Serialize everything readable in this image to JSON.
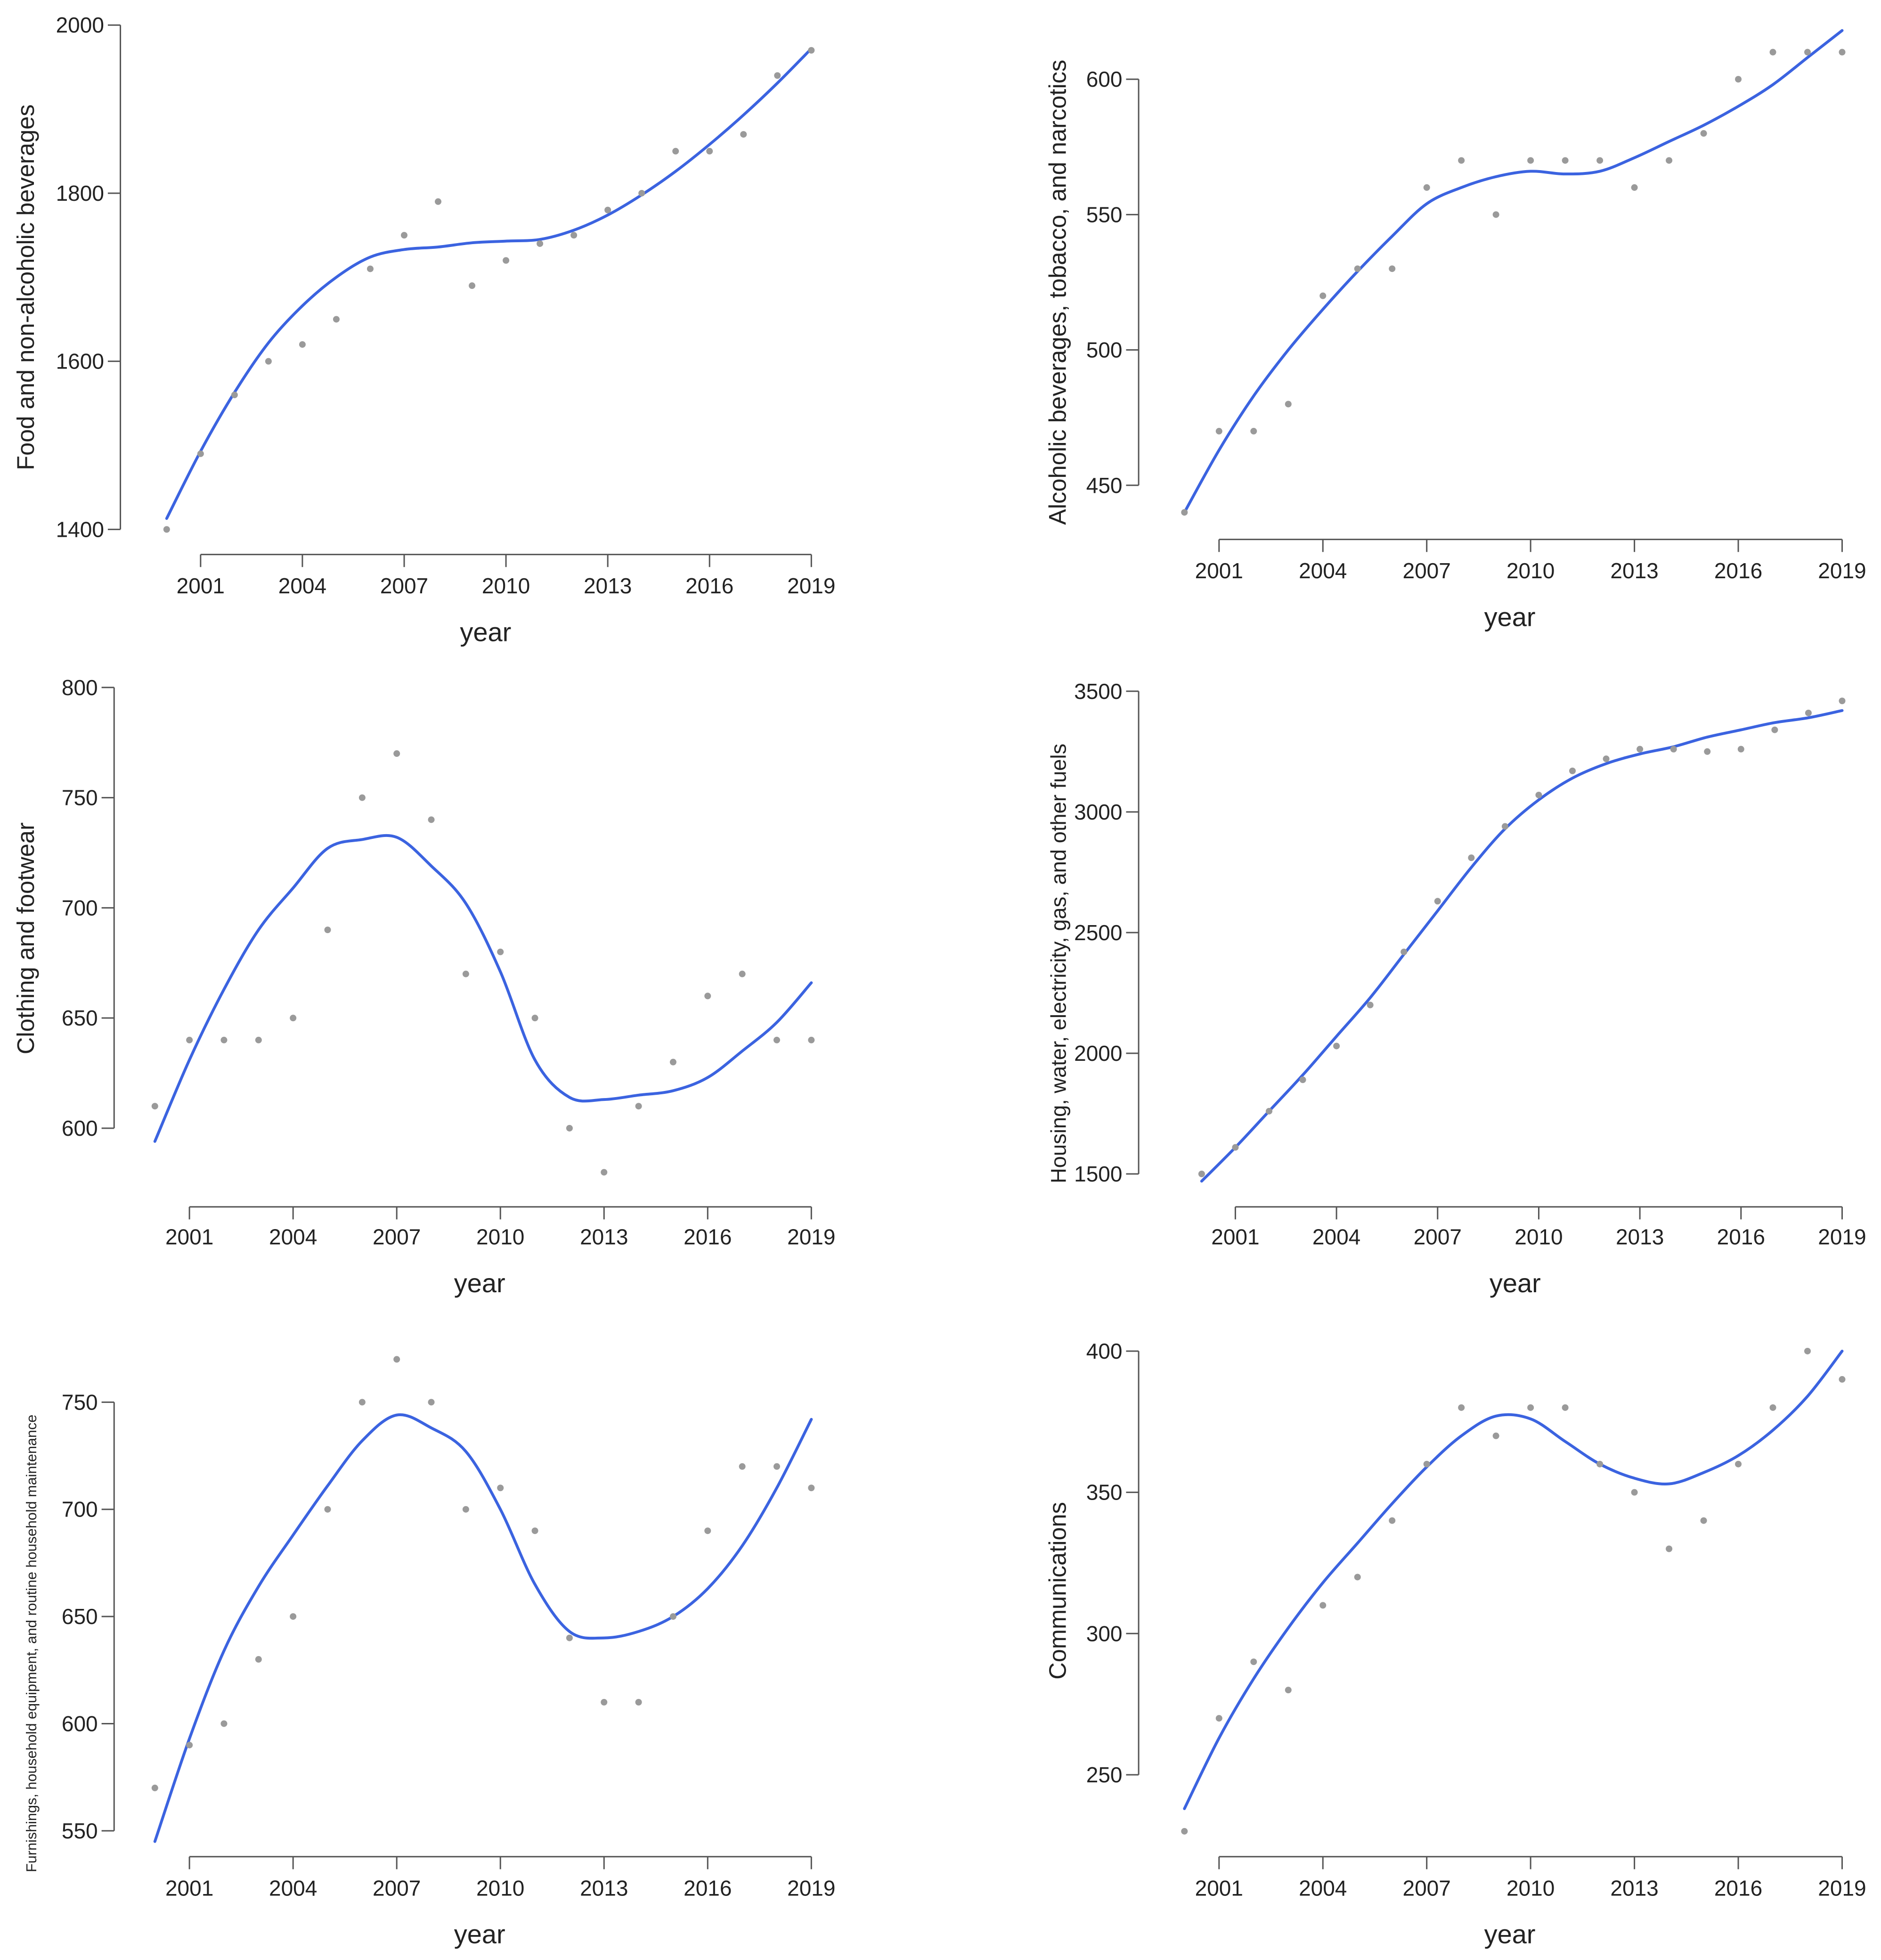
{
  "colors": {
    "smooth_line": "#3b63e0",
    "points": "#9a9a9a",
    "axis": "#555555",
    "text": "#222222"
  },
  "chart_data": [
    {
      "type": "scatter",
      "xlabel": "year",
      "ylabel": "Food and non-alcoholic beverages",
      "xlim": [
        1999.8,
        2019
      ],
      "ylim": [
        1400,
        2000
      ],
      "x_ticks": [
        2001,
        2004,
        2007,
        2010,
        2013,
        2016,
        2019
      ],
      "y_ticks": [
        1400,
        1600,
        1800,
        2000
      ],
      "x_tick_labels": [
        "2001",
        "2004",
        "2007",
        "2010",
        "2013",
        "2016",
        "2019"
      ],
      "y_tick_labels": [
        "1400",
        "1600",
        "1800",
        "2000"
      ],
      "grid": false,
      "legend": "none",
      "points": {
        "x": [
          2000,
          2001,
          2002,
          2003,
          2004,
          2005,
          2006,
          2007,
          2008,
          2009,
          2010,
          2011,
          2012,
          2013,
          2014,
          2015,
          2016,
          2017,
          2018,
          2019
        ],
        "y": [
          1400,
          1490,
          1560,
          1600,
          1620,
          1650,
          1710,
          1750,
          1790,
          1690,
          1720,
          1740,
          1750,
          1780,
          1800,
          1850,
          1850,
          1870,
          1940,
          1970
        ]
      },
      "smooth": {
        "x": [
          2000,
          2001,
          2002,
          2003,
          2004,
          2005,
          2006,
          2007,
          2008,
          2009,
          2010,
          2011,
          2012,
          2013,
          2014,
          2015,
          2016,
          2017,
          2018,
          2019
        ],
        "y": [
          1413,
          1493,
          1563,
          1622,
          1666,
          1700,
          1724,
          1733,
          1736,
          1741,
          1743,
          1745,
          1756,
          1774,
          1798,
          1826,
          1858,
          1893,
          1931,
          1972
        ]
      }
    },
    {
      "type": "scatter",
      "xlabel": "year",
      "ylabel": "Alcoholic beverages, tobacco, and narcotics",
      "xlim": [
        1999.8,
        2019
      ],
      "ylim": [
        430,
        620
      ],
      "x_ticks": [
        2001,
        2004,
        2007,
        2010,
        2013,
        2016,
        2019
      ],
      "y_ticks": [
        450,
        500,
        550,
        600
      ],
      "x_tick_labels": [
        "2001",
        "2004",
        "2007",
        "2010",
        "2013",
        "2016",
        "2019"
      ],
      "y_tick_labels": [
        "450",
        "500",
        "550",
        "600"
      ],
      "grid": false,
      "legend": "none",
      "points": {
        "x": [
          2000,
          2001,
          2002,
          2003,
          2004,
          2005,
          2006,
          2007,
          2008,
          2009,
          2010,
          2011,
          2012,
          2013,
          2014,
          2015,
          2016,
          2017,
          2018,
          2019
        ],
        "y": [
          440,
          470,
          470,
          480,
          520,
          530,
          530,
          560,
          570,
          550,
          570,
          570,
          570,
          560,
          570,
          580,
          600,
          610,
          610,
          610
        ]
      },
      "smooth": {
        "x": [
          2000,
          2001,
          2002,
          2003,
          2004,
          2005,
          2006,
          2007,
          2008,
          2009,
          2010,
          2011,
          2012,
          2013,
          2014,
          2015,
          2016,
          2017,
          2018,
          2019
        ],
        "y": [
          440,
          463,
          483,
          500,
          515,
          529,
          542,
          554,
          560,
          564,
          566,
          565,
          566,
          571,
          577,
          583,
          590,
          598,
          608,
          618
        ]
      }
    },
    {
      "type": "scatter",
      "xlabel": "year",
      "ylabel": "Clothing and footwear",
      "xlim": [
        1999.8,
        2019
      ],
      "ylim": [
        570,
        800
      ],
      "x_ticks": [
        2001,
        2004,
        2007,
        2010,
        2013,
        2016,
        2019
      ],
      "y_ticks": [
        600,
        650,
        700,
        750,
        800
      ],
      "x_tick_labels": [
        "2001",
        "2004",
        "2007",
        "2010",
        "2013",
        "2016",
        "2019"
      ],
      "y_tick_labels": [
        "600",
        "650",
        "700",
        "750",
        "800"
      ],
      "grid": false,
      "legend": "none",
      "points": {
        "x": [
          2000,
          2001,
          2002,
          2003,
          2004,
          2005,
          2006,
          2007,
          2008,
          2009,
          2010,
          2011,
          2012,
          2013,
          2014,
          2015,
          2016,
          2017,
          2018,
          2019
        ],
        "y": [
          610,
          640,
          640,
          640,
          650,
          690,
          750,
          770,
          740,
          670,
          680,
          650,
          600,
          580,
          610,
          630,
          660,
          670,
          640,
          640
        ]
      },
      "smooth": {
        "x": [
          2000,
          2001,
          2002,
          2003,
          2004,
          2005,
          2006,
          2007,
          2008,
          2009,
          2010,
          2011,
          2012,
          2013,
          2014,
          2015,
          2016,
          2017,
          2018,
          2019
        ],
        "y": [
          594,
          631,
          663,
          690,
          709,
          727,
          731,
          732,
          719,
          702,
          671,
          631,
          614,
          613,
          615,
          617,
          623,
          635,
          648,
          666
        ]
      }
    },
    {
      "type": "scatter",
      "xlabel": "year",
      "ylabel": "Housing, water, electricity, gas, and other fuels",
      "xlim": [
        1999.6,
        2019
      ],
      "ylim": [
        1400,
        3500
      ],
      "x_ticks": [
        2001,
        2004,
        2007,
        2010,
        2013,
        2016,
        2019
      ],
      "y_ticks": [
        1500,
        2000,
        2500,
        3000,
        3500
      ],
      "x_tick_labels": [
        "2001",
        "2004",
        "2007",
        "2010",
        "2013",
        "2016",
        "2019"
      ],
      "y_tick_labels": [
        "1500",
        "2000",
        "2500",
        "3000",
        "3500"
      ],
      "grid": false,
      "legend": "none",
      "points": {
        "x": [
          2000,
          2001,
          2002,
          2003,
          2004,
          2005,
          2006,
          2007,
          2008,
          2009,
          2010,
          2011,
          2012,
          2013,
          2014,
          2015,
          2016,
          2017,
          2018,
          2019
        ],
        "y": [
          1500,
          1610,
          1760,
          1890,
          2030,
          2200,
          2420,
          2630,
          2810,
          2940,
          3070,
          3170,
          3220,
          3260,
          3260,
          3250,
          3260,
          3340,
          3410,
          3460
        ]
      },
      "smooth": {
        "x": [
          2000,
          2001,
          2002,
          2003,
          2004,
          2005,
          2006,
          2007,
          2008,
          2009,
          2010,
          2011,
          2012,
          2013,
          2014,
          2015,
          2016,
          2017,
          2018,
          2019
        ],
        "y": [
          1470,
          1610,
          1760,
          1910,
          2070,
          2230,
          2410,
          2590,
          2770,
          2930,
          3050,
          3140,
          3200,
          3240,
          3270,
          3310,
          3340,
          3370,
          3390,
          3420
        ]
      }
    },
    {
      "type": "scatter",
      "xlabel": "year",
      "ylabel": "Furnishings, household equipment, and routine household maintenance",
      "xlim": [
        1999.8,
        2019
      ],
      "ylim": [
        535,
        775
      ],
      "x_ticks": [
        2001,
        2004,
        2007,
        2010,
        2013,
        2016,
        2019
      ],
      "y_ticks": [
        550,
        600,
        650,
        700,
        750
      ],
      "x_tick_labels": [
        "2001",
        "2004",
        "2007",
        "2010",
        "2013",
        "2016",
        "2019"
      ],
      "y_tick_labels": [
        "550",
        "600",
        "650",
        "700",
        "750"
      ],
      "grid": false,
      "legend": "none",
      "points": {
        "x": [
          2000,
          2001,
          2002,
          2003,
          2004,
          2005,
          2006,
          2007,
          2008,
          2009,
          2010,
          2011,
          2012,
          2013,
          2014,
          2015,
          2016,
          2017,
          2018,
          2019
        ],
        "y": [
          570,
          590,
          600,
          630,
          650,
          700,
          750,
          770,
          750,
          700,
          710,
          690,
          640,
          610,
          610,
          650,
          690,
          720,
          720,
          710
        ]
      },
      "smooth": {
        "x": [
          2000,
          2001,
          2002,
          2003,
          2004,
          2005,
          2006,
          2007,
          2008,
          2009,
          2010,
          2011,
          2012,
          2013,
          2014,
          2015,
          2016,
          2017,
          2018,
          2019
        ],
        "y": [
          545,
          593,
          634,
          664,
          688,
          711,
          732,
          744,
          738,
          727,
          700,
          665,
          643,
          640,
          643,
          650,
          663,
          683,
          710,
          742
        ]
      }
    },
    {
      "type": "scatter",
      "xlabel": "year",
      "ylabel": "Communications",
      "xlim": [
        1999.8,
        2019
      ],
      "ylim": [
        225,
        400
      ],
      "x_ticks": [
        2001,
        2004,
        2007,
        2010,
        2013,
        2016,
        2019
      ],
      "y_ticks": [
        250,
        300,
        350,
        400
      ],
      "x_tick_labels": [
        "2001",
        "2004",
        "2007",
        "2010",
        "2013",
        "2016",
        "2019"
      ],
      "y_tick_labels": [
        "250",
        "300",
        "350",
        "400"
      ],
      "grid": false,
      "legend": "none",
      "points": {
        "x": [
          2000,
          2001,
          2002,
          2003,
          2004,
          2005,
          2006,
          2007,
          2008,
          2009,
          2010,
          2011,
          2012,
          2013,
          2014,
          2015,
          2016,
          2017,
          2018,
          2019
        ],
        "y": [
          230,
          270,
          290,
          280,
          310,
          320,
          340,
          360,
          380,
          370,
          380,
          380,
          360,
          350,
          330,
          340,
          360,
          380,
          400,
          390
        ]
      },
      "smooth": {
        "x": [
          2000,
          2001,
          2002,
          2003,
          2004,
          2005,
          2006,
          2007,
          2008,
          2009,
          2010,
          2011,
          2012,
          2013,
          2014,
          2015,
          2016,
          2017,
          2018,
          2019
        ],
        "y": [
          238,
          263,
          284,
          302,
          318,
          332,
          346,
          359,
          370,
          377,
          376,
          368,
          360,
          355,
          353,
          357,
          363,
          372,
          384,
          400
        ]
      }
    }
  ]
}
